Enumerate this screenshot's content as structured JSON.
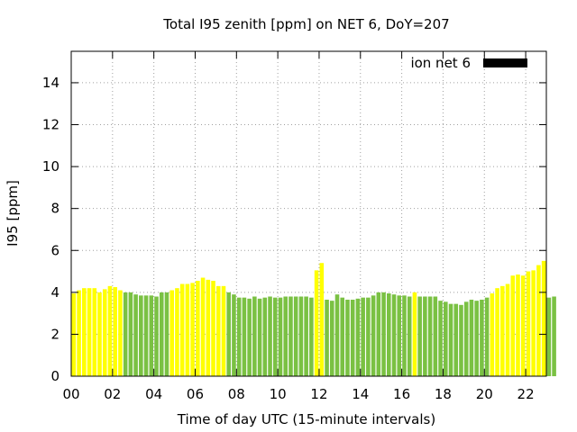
{
  "chart_data": {
    "type": "bar",
    "title": "Total I95 zenith [ppm] on NET 6, DoY=207",
    "xlabel": "Time of day UTC (15-minute intervals)",
    "ylabel": "I95 [ppm]",
    "ylim": [
      0,
      15.5
    ],
    "xlim": [
      0,
      23
    ],
    "yticks": [
      "0",
      "2",
      "4",
      "6",
      "8",
      "10",
      "12",
      "14"
    ],
    "xticks": [
      "00",
      "02",
      "04",
      "06",
      "08",
      "10",
      "12",
      "14",
      "16",
      "18",
      "20",
      "22"
    ],
    "grid": true,
    "legend": {
      "label": "ion net 6",
      "position": "top-right",
      "color": "#000000"
    },
    "colors": {
      "yellow": "#ffff00",
      "green": "#7ac143"
    },
    "series": [
      {
        "interval_hours": 0.25,
        "values": [
          3.95,
          4.1,
          4.2,
          4.2,
          4.2,
          4.0,
          4.15,
          4.3,
          4.25,
          4.1,
          4.0,
          4.0,
          3.9,
          3.85,
          3.85,
          3.85,
          3.8,
          4.0,
          4.0,
          4.1,
          4.2,
          4.4,
          4.4,
          4.45,
          4.55,
          4.7,
          4.6,
          4.55,
          4.3,
          4.3,
          4.0,
          3.9,
          3.75,
          3.75,
          3.7,
          3.8,
          3.7,
          3.75,
          3.8,
          3.75,
          3.75,
          3.8,
          3.8,
          3.8,
          3.8,
          3.8,
          3.75,
          5.05,
          5.4,
          3.65,
          3.6,
          3.9,
          3.75,
          3.65,
          3.65,
          3.7,
          3.75,
          3.75,
          3.85,
          4.0,
          4.0,
          3.95,
          3.9,
          3.85,
          3.85,
          3.8,
          4.0,
          3.8,
          3.8,
          3.8,
          3.8,
          3.6,
          3.55,
          3.45,
          3.45,
          3.4,
          3.55,
          3.65,
          3.6,
          3.65,
          3.75,
          3.95,
          4.2,
          4.3,
          4.4,
          4.8,
          4.85,
          4.8,
          5.0,
          5.05,
          5.3,
          5.5,
          3.75,
          3.8
        ],
        "colors": [
          "yellow",
          "yellow",
          "yellow",
          "yellow",
          "yellow",
          "yellow",
          "yellow",
          "yellow",
          "yellow",
          "yellow",
          "green",
          "green",
          "green",
          "green",
          "green",
          "green",
          "green",
          "green",
          "green",
          "yellow",
          "yellow",
          "yellow",
          "yellow",
          "yellow",
          "yellow",
          "yellow",
          "yellow",
          "yellow",
          "yellow",
          "yellow",
          "green",
          "green",
          "green",
          "green",
          "green",
          "green",
          "green",
          "green",
          "green",
          "green",
          "green",
          "green",
          "green",
          "green",
          "green",
          "green",
          "green",
          "yellow",
          "yellow",
          "green",
          "green",
          "green",
          "green",
          "green",
          "green",
          "green",
          "green",
          "green",
          "green",
          "green",
          "green",
          "green",
          "green",
          "green",
          "green",
          "green",
          "yellow",
          "green",
          "green",
          "green",
          "green",
          "green",
          "green",
          "green",
          "green",
          "green",
          "green",
          "green",
          "green",
          "green",
          "green",
          "yellow",
          "yellow",
          "yellow",
          "yellow",
          "yellow",
          "yellow",
          "yellow",
          "yellow",
          "yellow",
          "yellow",
          "yellow",
          "green",
          "green"
        ]
      }
    ]
  }
}
